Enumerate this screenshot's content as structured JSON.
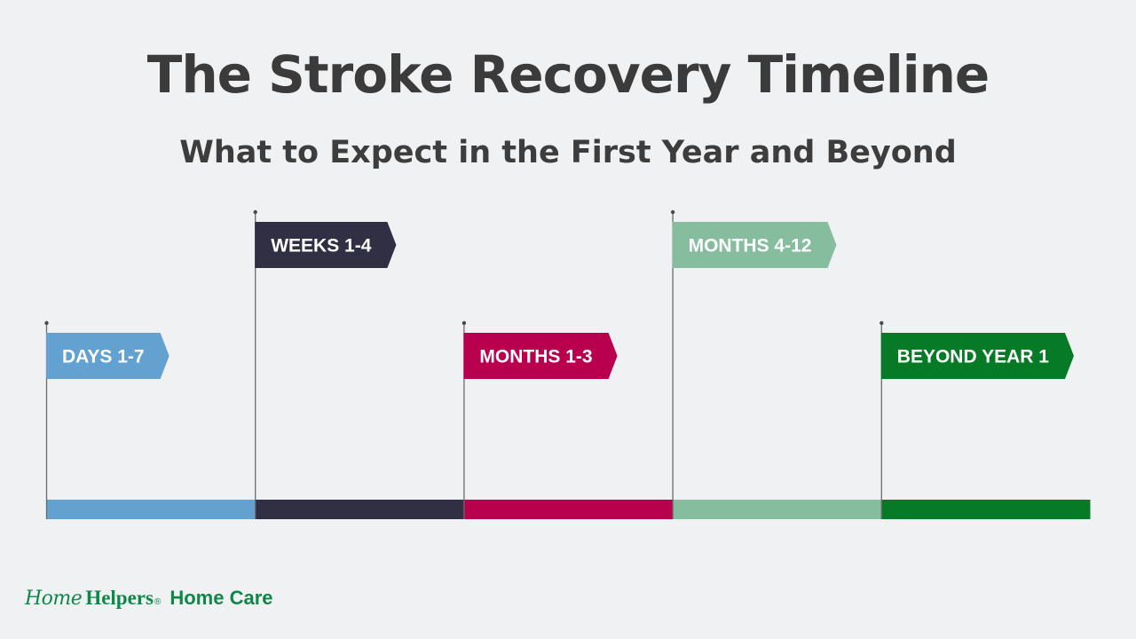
{
  "title": "The Stroke Recovery Timeline",
  "subtitle": "What to Expect in the First Year and Beyond",
  "stages": [
    {
      "label": "DAYS 1-7",
      "color": "#62a1d0"
    },
    {
      "label": "WEEKS 1-4",
      "color": "#302f44"
    },
    {
      "label": "MONTHS 1-3",
      "color": "#b8004f"
    },
    {
      "label": "MONTHS 4-12",
      "color": "#85bd9e"
    },
    {
      "label": "BEYOND YEAR 1",
      "color": "#077a25"
    }
  ],
  "brand": {
    "script": "Home",
    "name": "Helpers",
    "registered": "®",
    "tagline": "Home Care",
    "color": "#0e8748"
  }
}
